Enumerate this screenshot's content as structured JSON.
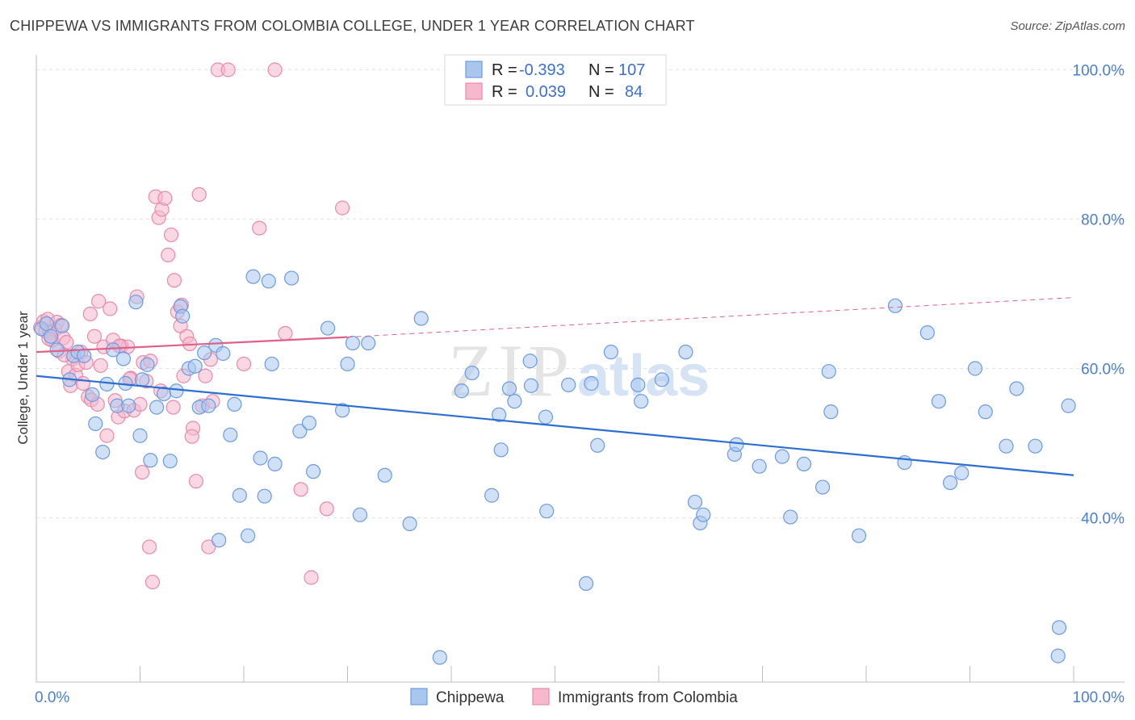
{
  "header": {
    "title": "CHIPPEWA VS IMMIGRANTS FROM COLOMBIA COLLEGE, UNDER 1 YEAR CORRELATION CHART",
    "source": "Source: ZipAtlas.com"
  },
  "watermark": "ZIPatlas",
  "legend": {
    "rows": [
      {
        "r_label": "R =",
        "r_value": "-0.393",
        "n_label": "N =",
        "n_value": "107"
      },
      {
        "r_label": "R =",
        "r_value": "0.039",
        "n_label": "N =",
        "n_value": "84"
      }
    ]
  },
  "colors": {
    "chippewa_fill": "#a9c6ee",
    "chippewa_stroke": "#6b9be0",
    "chippewa_line": "#2d6fd1",
    "colombia_fill": "#f5b8cc",
    "colombia_stroke": "#e98aaa",
    "colombia_line": "#e0608a",
    "tick_text": "#4a7fd0",
    "grid": "#e3e3e3"
  },
  "chart_data": {
    "type": "scatter",
    "title": "CHIPPEWA VS IMMIGRANTS FROM COLOMBIA COLLEGE, UNDER 1 YEAR CORRELATION CHART",
    "xlabel": "",
    "ylabel": "College, Under 1 year",
    "xlim": [
      0,
      100
    ],
    "ylim": [
      18,
      102
    ],
    "x_tick_labels": [
      "0.0%",
      "100.0%"
    ],
    "y_ticks": [
      40,
      60,
      80,
      100
    ],
    "y_tick_labels": [
      "40.0%",
      "60.0%",
      "80.0%",
      "100.0%"
    ],
    "grid": true,
    "legend_position": "bottom",
    "series": [
      {
        "name": "Chippewa",
        "r": -0.393,
        "n": 107,
        "trend": {
          "x": [
            0,
            100
          ],
          "y": [
            59.0,
            45.7
          ]
        },
        "points": [
          [
            0.5,
            65.3
          ],
          [
            1.0,
            66.0
          ],
          [
            1.4,
            64.3
          ],
          [
            2.0,
            62.5
          ],
          [
            2.5,
            65.7
          ],
          [
            3.2,
            58.5
          ],
          [
            3.6,
            61.7
          ],
          [
            4.0,
            62.2
          ],
          [
            4.6,
            61.7
          ],
          [
            5.4,
            56.5
          ],
          [
            5.7,
            52.6
          ],
          [
            6.4,
            48.8
          ],
          [
            6.8,
            57.9
          ],
          [
            7.4,
            62.5
          ],
          [
            7.8,
            55.0
          ],
          [
            8.4,
            61.3
          ],
          [
            8.6,
            58.0
          ],
          [
            8.9,
            55.0
          ],
          [
            9.6,
            68.9
          ],
          [
            10.0,
            51.0
          ],
          [
            10.2,
            58.5
          ],
          [
            10.7,
            60.5
          ],
          [
            11.0,
            47.7
          ],
          [
            11.6,
            54.8
          ],
          [
            12.3,
            56.6
          ],
          [
            12.9,
            47.6
          ],
          [
            13.5,
            57.0
          ],
          [
            13.9,
            68.3
          ],
          [
            14.1,
            67.0
          ],
          [
            14.7,
            60.0
          ],
          [
            15.3,
            60.3
          ],
          [
            15.7,
            54.8
          ],
          [
            16.2,
            62.1
          ],
          [
            16.6,
            55.0
          ],
          [
            17.3,
            63.1
          ],
          [
            17.6,
            37.0
          ],
          [
            18.0,
            62.0
          ],
          [
            18.7,
            51.1
          ],
          [
            19.1,
            55.2
          ],
          [
            19.6,
            43.0
          ],
          [
            20.4,
            37.6
          ],
          [
            20.9,
            72.3
          ],
          [
            21.6,
            48.0
          ],
          [
            22.0,
            42.9
          ],
          [
            22.4,
            71.7
          ],
          [
            22.7,
            60.6
          ],
          [
            23.0,
            47.2
          ],
          [
            24.6,
            72.1
          ],
          [
            25.4,
            51.6
          ],
          [
            26.3,
            52.7
          ],
          [
            26.7,
            46.2
          ],
          [
            28.1,
            65.4
          ],
          [
            29.5,
            54.4
          ],
          [
            30.0,
            60.6
          ],
          [
            30.5,
            63.4
          ],
          [
            31.2,
            40.4
          ],
          [
            32.0,
            63.4
          ],
          [
            33.6,
            45.7
          ],
          [
            36.0,
            39.2
          ],
          [
            37.1,
            66.7
          ],
          [
            38.9,
            21.3
          ],
          [
            41.0,
            57.0
          ],
          [
            42.0,
            59.4
          ],
          [
            43.9,
            43.0
          ],
          [
            44.6,
            53.8
          ],
          [
            44.8,
            49.1
          ],
          [
            45.6,
            57.3
          ],
          [
            46.1,
            55.6
          ],
          [
            47.6,
            61.0
          ],
          [
            47.7,
            57.7
          ],
          [
            49.1,
            53.5
          ],
          [
            49.2,
            40.9
          ],
          [
            51.3,
            57.8
          ],
          [
            53.0,
            31.2
          ],
          [
            53.5,
            58.0
          ],
          [
            54.1,
            49.7
          ],
          [
            55.4,
            62.2
          ],
          [
            58.0,
            57.8
          ],
          [
            58.3,
            55.6
          ],
          [
            60.3,
            58.5
          ],
          [
            62.6,
            62.2
          ],
          [
            63.5,
            42.1
          ],
          [
            64.0,
            39.3
          ],
          [
            64.3,
            40.4
          ],
          [
            67.3,
            48.5
          ],
          [
            67.5,
            49.8
          ],
          [
            69.7,
            46.9
          ],
          [
            71.9,
            48.2
          ],
          [
            72.7,
            40.1
          ],
          [
            74.0,
            47.2
          ],
          [
            75.8,
            44.1
          ],
          [
            76.4,
            59.6
          ],
          [
            76.6,
            54.2
          ],
          [
            79.3,
            37.6
          ],
          [
            82.8,
            68.4
          ],
          [
            83.7,
            47.4
          ],
          [
            85.9,
            64.8
          ],
          [
            87.0,
            55.6
          ],
          [
            88.1,
            44.7
          ],
          [
            89.2,
            46.0
          ],
          [
            90.5,
            60.0
          ],
          [
            91.5,
            54.2
          ],
          [
            93.5,
            49.6
          ],
          [
            94.5,
            57.3
          ],
          [
            96.3,
            49.6
          ],
          [
            98.5,
            21.5
          ],
          [
            98.6,
            25.3
          ],
          [
            99.5,
            55.0
          ]
        ]
      },
      {
        "name": "Immigrants from Colombia",
        "r": 0.039,
        "n": 84,
        "trend": {
          "x": [
            0,
            30
          ],
          "y": [
            62.2,
            64.2
          ]
        },
        "trend_extended": {
          "x": [
            30,
            100
          ],
          "y": [
            64.2,
            69.5
          ]
        },
        "points": [
          [
            0.4,
            65.5
          ],
          [
            0.7,
            66.3
          ],
          [
            0.9,
            65.0
          ],
          [
            1.1,
            66.6
          ],
          [
            1.3,
            64.8
          ],
          [
            1.5,
            63.8
          ],
          [
            1.8,
            65.2
          ],
          [
            2.0,
            66.2
          ],
          [
            2.2,
            62.3
          ],
          [
            2.4,
            65.8
          ],
          [
            2.6,
            64.1
          ],
          [
            2.9,
            63.5
          ],
          [
            3.1,
            59.6
          ],
          [
            3.3,
            57.7
          ],
          [
            3.5,
            61.3
          ],
          [
            3.8,
            59.1
          ],
          [
            4.0,
            60.5
          ],
          [
            4.3,
            62.2
          ],
          [
            4.5,
            58.0
          ],
          [
            4.8,
            60.8
          ],
          [
            5.0,
            56.2
          ],
          [
            5.3,
            55.8
          ],
          [
            5.6,
            64.3
          ],
          [
            5.9,
            55.2
          ],
          [
            6.2,
            60.4
          ],
          [
            6.5,
            62.9
          ],
          [
            6.8,
            51.0
          ],
          [
            7.1,
            68.0
          ],
          [
            7.4,
            63.8
          ],
          [
            7.6,
            55.7
          ],
          [
            7.9,
            53.5
          ],
          [
            8.2,
            63.0
          ],
          [
            8.5,
            54.3
          ],
          [
            8.8,
            62.9
          ],
          [
            9.1,
            58.7
          ],
          [
            9.4,
            54.4
          ],
          [
            9.7,
            69.6
          ],
          [
            10.0,
            55.2
          ],
          [
            10.3,
            60.8
          ],
          [
            10.6,
            58.3
          ],
          [
            10.9,
            36.1
          ],
          [
            11.2,
            31.4
          ],
          [
            11.5,
            83.0
          ],
          [
            11.8,
            80.2
          ],
          [
            12.1,
            81.3
          ],
          [
            12.4,
            82.8
          ],
          [
            12.7,
            75.2
          ],
          [
            13.0,
            77.9
          ],
          [
            13.3,
            71.8
          ],
          [
            13.6,
            67.6
          ],
          [
            13.9,
            65.7
          ],
          [
            14.2,
            59.0
          ],
          [
            14.5,
            64.3
          ],
          [
            14.8,
            63.3
          ],
          [
            15.1,
            52.0
          ],
          [
            15.4,
            44.9
          ],
          [
            15.7,
            83.3
          ],
          [
            16.0,
            55.0
          ],
          [
            16.3,
            59.0
          ],
          [
            16.6,
            36.1
          ],
          [
            17.0,
            55.6
          ],
          [
            17.5,
            100.0
          ],
          [
            18.5,
            100.0
          ],
          [
            20.0,
            60.6
          ],
          [
            21.5,
            78.8
          ],
          [
            23.0,
            100.0
          ],
          [
            24.0,
            64.7
          ],
          [
            25.5,
            43.8
          ],
          [
            26.5,
            32.0
          ],
          [
            28.0,
            41.2
          ],
          [
            29.5,
            81.5
          ],
          [
            1.2,
            64.0
          ],
          [
            2.7,
            61.8
          ],
          [
            5.2,
            67.3
          ],
          [
            6.0,
            69.0
          ],
          [
            8.0,
            63.0
          ],
          [
            9.0,
            58.6
          ],
          [
            10.2,
            46.1
          ],
          [
            11.0,
            61.0
          ],
          [
            12.0,
            57.0
          ],
          [
            13.2,
            54.8
          ],
          [
            14.0,
            68.5
          ],
          [
            15.0,
            50.9
          ],
          [
            16.8,
            61.2
          ]
        ]
      }
    ]
  },
  "bottom_legend": {
    "items": [
      {
        "label": "Chippewa"
      },
      {
        "label": "Immigrants from Colombia"
      }
    ]
  }
}
